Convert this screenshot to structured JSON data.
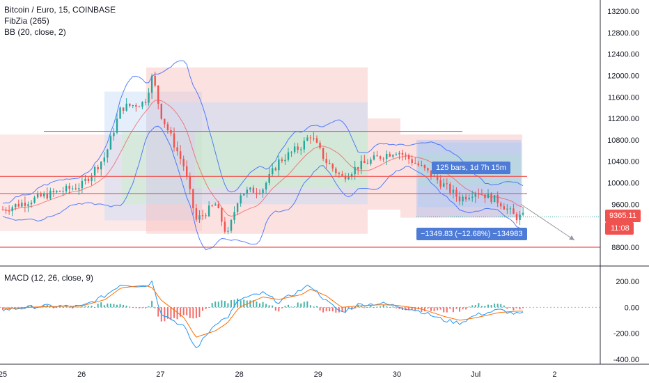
{
  "legend": {
    "symbol": "Bitcoin / Euro, 15, COINBASE",
    "fibzia": "FibZia (265)",
    "bb": "BB (20, close, 2)",
    "macd": "MACD (12, 26, close, 9)"
  },
  "price_axis": {
    "labels": [
      "13200.00",
      "12800.00",
      "12400.00",
      "12000.00",
      "11600.00",
      "11200.00",
      "10800.00",
      "10400.00",
      "10000.00",
      "9600.00",
      "8800.00"
    ],
    "last_price": "9365.11",
    "last_price_partial": "92",
    "countdown": "11:08"
  },
  "macd_axis": {
    "labels": [
      "200.00",
      "0.00",
      "-200.00",
      "-400.00"
    ]
  },
  "time_axis": {
    "labels": [
      "25",
      "26",
      "27",
      "28",
      "29",
      "30",
      "Jul",
      "2"
    ]
  },
  "measure": {
    "bars_label": "125 bars, 1d 7h 15m",
    "change_label": "−1349.83 (−12.68%) −134983"
  },
  "colors": {
    "up": "#26a69a",
    "down": "#ef5350",
    "bb": "#2962ff",
    "macd_line": "#2196f3",
    "signal_line": "#ff6d00",
    "zone_red": "#f8bcbc",
    "zone_blue": "#c6dcf8",
    "zone_green": "#c8f0c8",
    "measure_box": "#90b4f0",
    "tag_bg": "#4d7bd6",
    "last_price_bg": "#ef5350"
  },
  "chart_data": {
    "type": "line",
    "title": "Bitcoin / Euro, 15, COINBASE",
    "x": [
      "25",
      "25.5",
      "26",
      "26.3",
      "26.5",
      "26.8",
      "26.9",
      "27",
      "27.3",
      "27.45",
      "27.7",
      "27.85",
      "28",
      "28.3",
      "28.5",
      "28.8",
      "28.9",
      "29.1",
      "29.3",
      "29.5",
      "29.8",
      "30",
      "30.3",
      "30.6",
      "30.8",
      "Jul",
      "1.3",
      "1.5"
    ],
    "series": [
      {
        "name": "Close",
        "values": [
          9500,
          9750,
          9950,
          10500,
          11400,
          11500,
          12000,
          11300,
          10300,
          9300,
          9600,
          9000,
          9800,
          9900,
          10400,
          10700,
          10900,
          10400,
          10100,
          10300,
          10500,
          10600,
          10300,
          9950,
          9700,
          9850,
          9650,
          9365.11
        ]
      }
    ],
    "ylim": [
      8700,
      13300
    ],
    "macd": {
      "title": "MACD (12, 26, close, 9)",
      "x": [
        "25",
        "25.5",
        "26",
        "26.3",
        "26.5",
        "26.8",
        "26.9",
        "27",
        "27.3",
        "27.45",
        "27.7",
        "27.85",
        "28",
        "28.3",
        "28.5",
        "28.8",
        "28.9",
        "29.1",
        "29.3",
        "29.5",
        "29.8",
        "30",
        "30.3",
        "30.6",
        "30.8",
        "Jul",
        "1.3",
        "1.5"
      ],
      "macd": [
        -20,
        10,
        5,
        90,
        180,
        160,
        200,
        -40,
        -150,
        -320,
        -120,
        -80,
        60,
        110,
        40,
        140,
        170,
        50,
        -40,
        20,
        30,
        10,
        -30,
        -100,
        -120,
        -60,
        -20,
        -50
      ],
      "signal": [
        -10,
        5,
        10,
        60,
        150,
        170,
        150,
        60,
        -80,
        -230,
        -180,
        -120,
        0,
        80,
        60,
        100,
        140,
        90,
        0,
        10,
        20,
        15,
        -10,
        -70,
        -100,
        -80,
        -40,
        -30
      ],
      "ylim": [
        -420,
        260
      ]
    }
  }
}
